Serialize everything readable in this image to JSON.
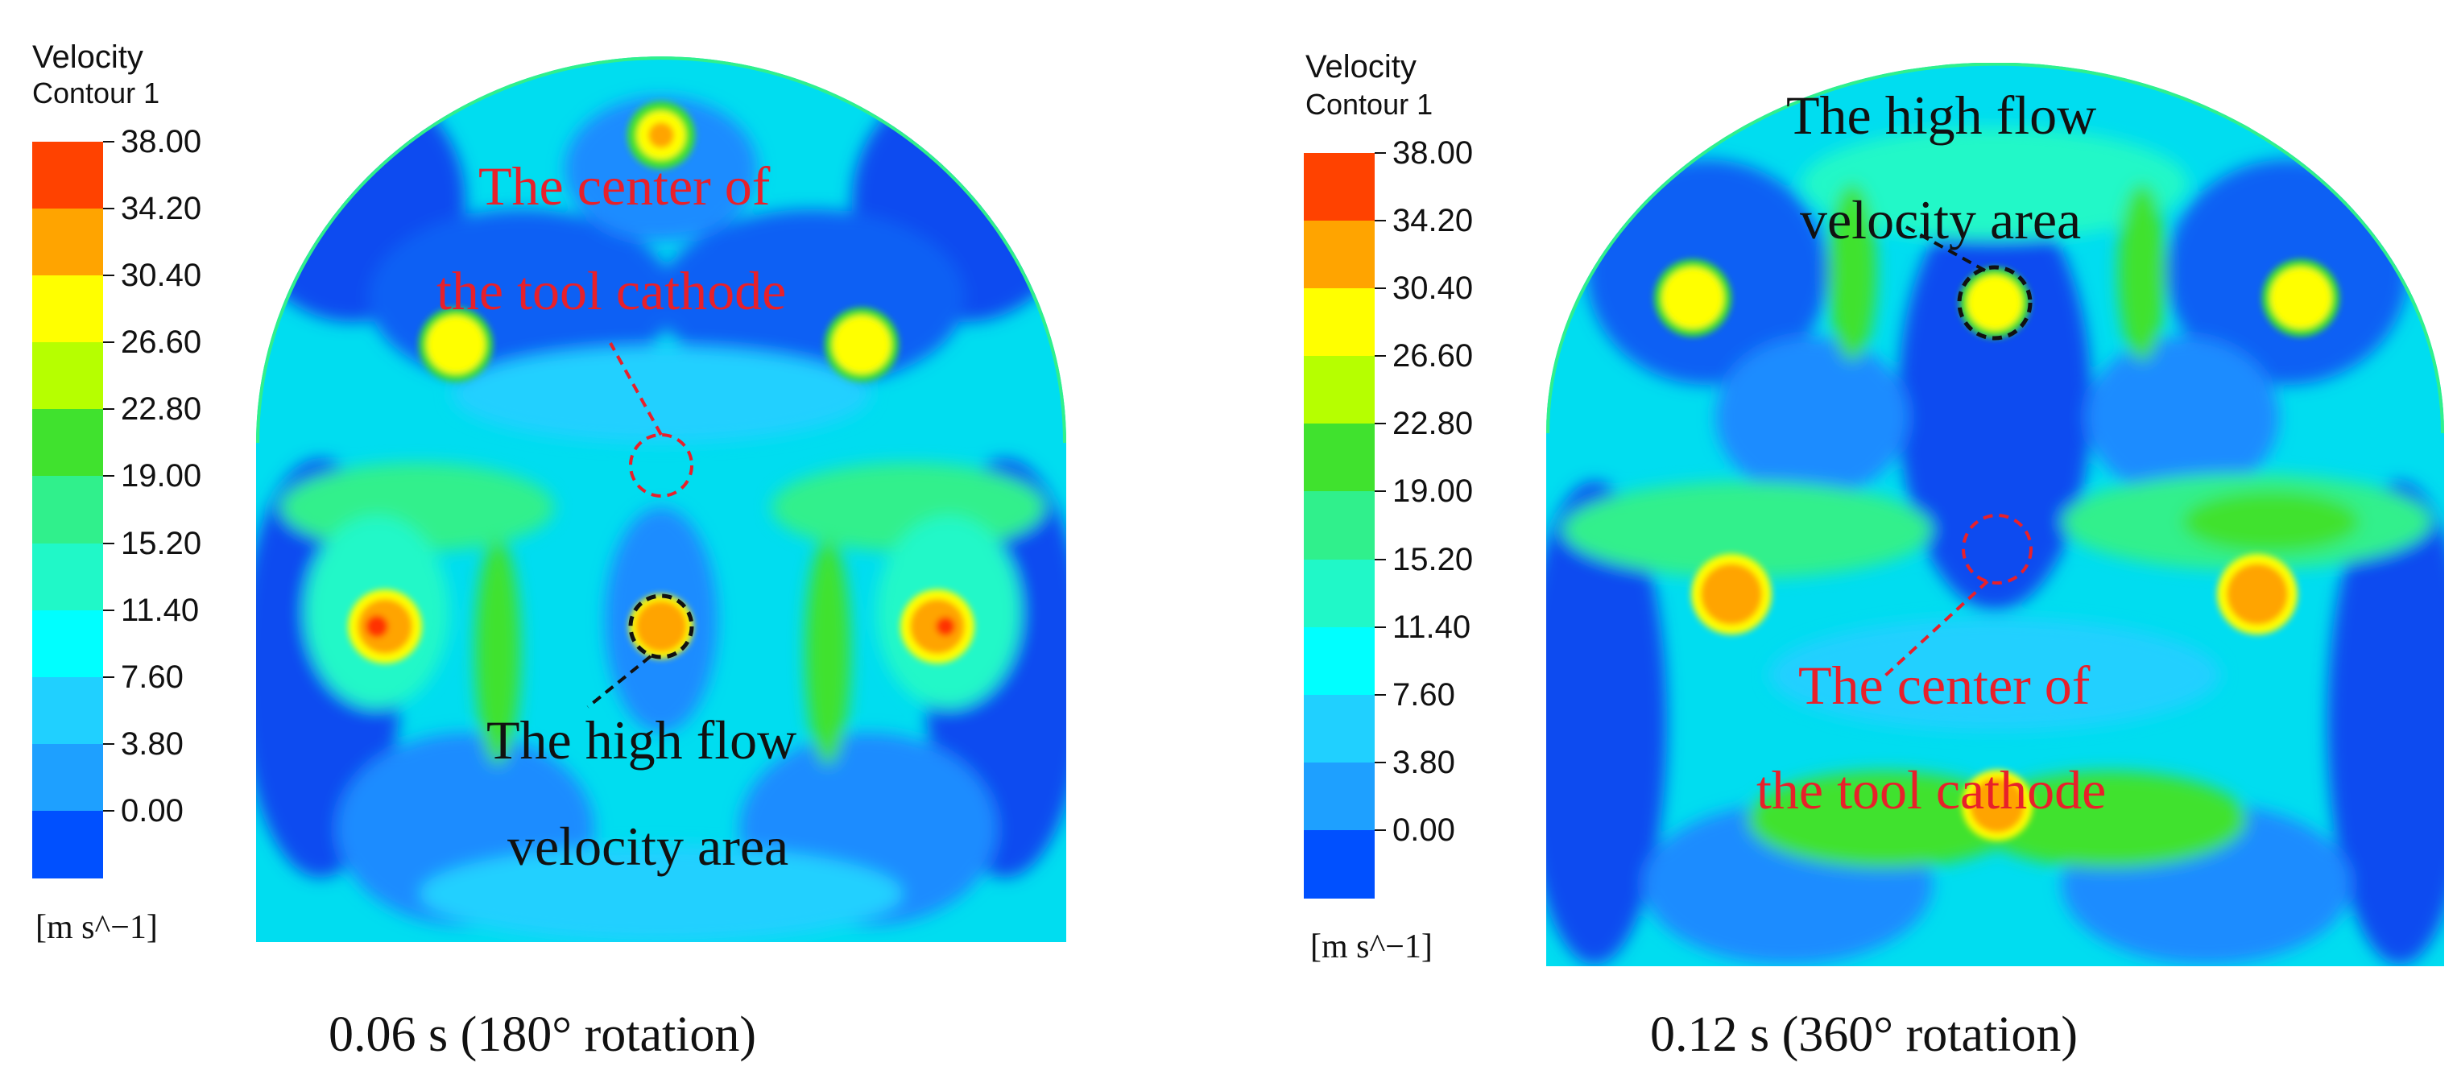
{
  "legend": {
    "title": "Velocity",
    "subtitle": "Contour 1",
    "ticks": [
      "38.00",
      "34.20",
      "30.40",
      "26.60",
      "22.80",
      "19.00",
      "15.20",
      "11.40",
      "7.60",
      "3.80",
      "0.00"
    ],
    "units": "[m s^−1]",
    "colors": [
      "#ff4200",
      "#ffa400",
      "#ffff00",
      "#b6ff00",
      "#40e22e",
      "#30f08c",
      "#20f8c8",
      "#00ffff",
      "#20d0ff",
      "#1ea0ff",
      "#0050ff"
    ]
  },
  "panels": [
    {
      "caption": "0.06 s (180° rotation)",
      "red_label_line1": "The center of",
      "red_label_line2": "the tool cathode",
      "black_label_line1": "The high flow",
      "black_label_line2": "velocity area"
    },
    {
      "caption": "0.12 s (360° rotation)",
      "black_label_line1": "The high flow",
      "black_label_line2": "velocity area",
      "red_label_line1": "The center of",
      "red_label_line2": "the tool cathode"
    }
  ],
  "colors": {
    "red_annotation": "#e8202a",
    "black_annotation": "#111111",
    "deep_blue": "#0f4cf0",
    "mid_blue": "#1e8cff",
    "cyan": "#00e8ff",
    "green": "#40e22e",
    "yellow": "#ffff00",
    "orange": "#ffa400",
    "red": "#ff3000"
  }
}
